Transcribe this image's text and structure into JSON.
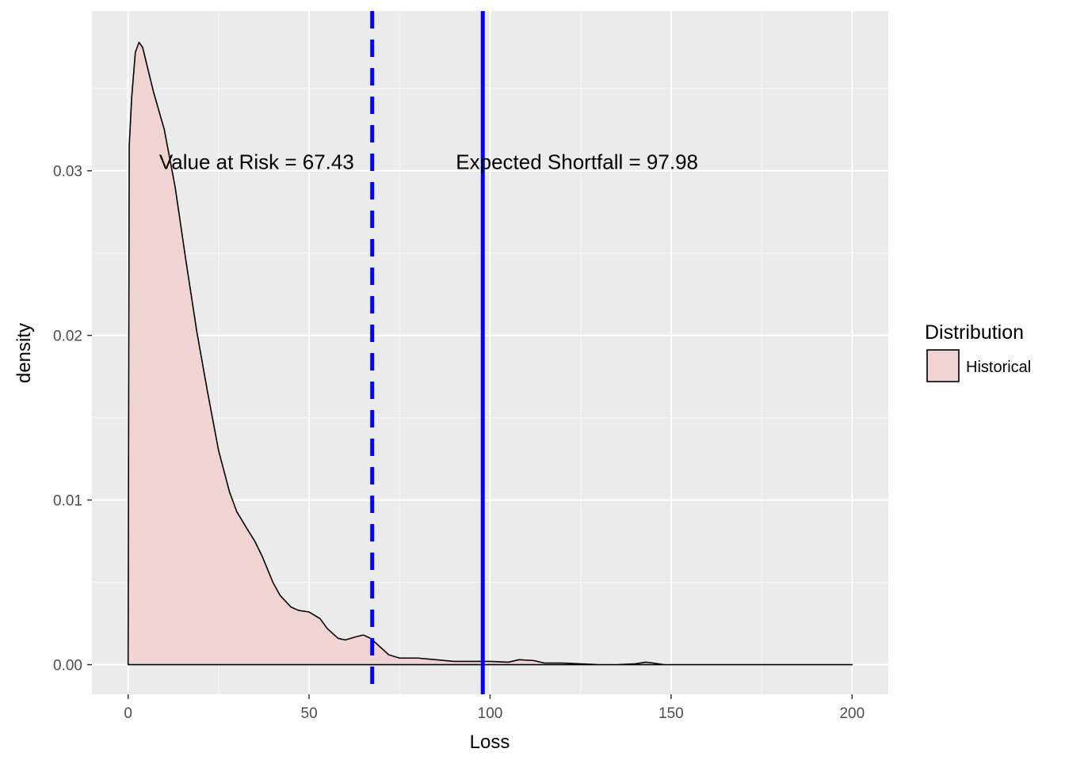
{
  "chart_data": {
    "type": "area",
    "xlabel": "Loss",
    "ylabel": "density",
    "xlim": [
      -10,
      210
    ],
    "ylim": [
      -0.0018,
      0.0397
    ],
    "x_ticks": [
      0,
      50,
      100,
      150,
      200
    ],
    "x_tick_labels": [
      "0",
      "50",
      "100",
      "150",
      "200"
    ],
    "y_ticks": [
      0.0,
      0.01,
      0.02,
      0.03
    ],
    "y_tick_labels": [
      "0.00",
      "0.01",
      "0.02",
      "0.03"
    ],
    "grid": true,
    "legend": {
      "title": "Distribution",
      "position": "right",
      "entries": [
        {
          "label": "Historical",
          "fill": "#f0d4d4",
          "stroke": "#000000"
        }
      ]
    },
    "series": [
      {
        "name": "Historical",
        "fill": "#f0d4d4",
        "stroke": "#000000",
        "x": [
          0,
          0.3,
          1,
          2,
          3,
          4,
          5,
          7,
          10,
          13,
          16,
          19,
          22,
          25,
          28,
          30,
          33,
          35,
          37,
          40,
          42,
          45,
          47,
          50,
          53,
          55,
          58,
          60,
          63,
          65,
          67,
          70,
          72,
          75,
          78,
          80,
          85,
          90,
          95,
          100,
          105,
          108,
          112,
          115,
          120,
          125,
          130,
          135,
          140,
          143,
          145,
          148,
          150,
          160,
          170,
          180,
          190,
          200
        ],
        "y": [
          0,
          0.0315,
          0.0345,
          0.0372,
          0.0378,
          0.0375,
          0.0366,
          0.0348,
          0.0325,
          0.029,
          0.0245,
          0.0202,
          0.0165,
          0.013,
          0.0105,
          0.0093,
          0.0082,
          0.0075,
          0.0066,
          0.005,
          0.0042,
          0.0035,
          0.0033,
          0.0032,
          0.0028,
          0.0022,
          0.0016,
          0.0015,
          0.0017,
          0.0018,
          0.0016,
          0.001,
          0.0006,
          0.0004,
          0.0004,
          0.0004,
          0.0003,
          0.0002,
          0.0002,
          0.0002,
          0.00015,
          0.0003,
          0.00025,
          0.0001,
          0.0001,
          5e-05,
          0.0,
          0.0,
          5e-05,
          0.00015,
          0.0001,
          0.0,
          0.0,
          0.0,
          0.0,
          0.0,
          0.0,
          0.0
        ]
      }
    ],
    "reference_lines": [
      {
        "x": 67.43,
        "style": "dashed",
        "color": "#0000ff"
      },
      {
        "x": 97.98,
        "style": "solid",
        "color": "#0000ff"
      }
    ],
    "annotations": [
      {
        "text": "Value at Risk = 67.43",
        "x": 35.5,
        "y": 0.0301
      },
      {
        "text": "Expected Shortfall = 97.98",
        "x": 124,
        "y": 0.0301
      }
    ],
    "colors": {
      "panel_background": "#ebebeb",
      "grid_major": "#ffffff",
      "grid_minor": "#f5f5f5",
      "tick_text": "#4d4d4d"
    }
  }
}
